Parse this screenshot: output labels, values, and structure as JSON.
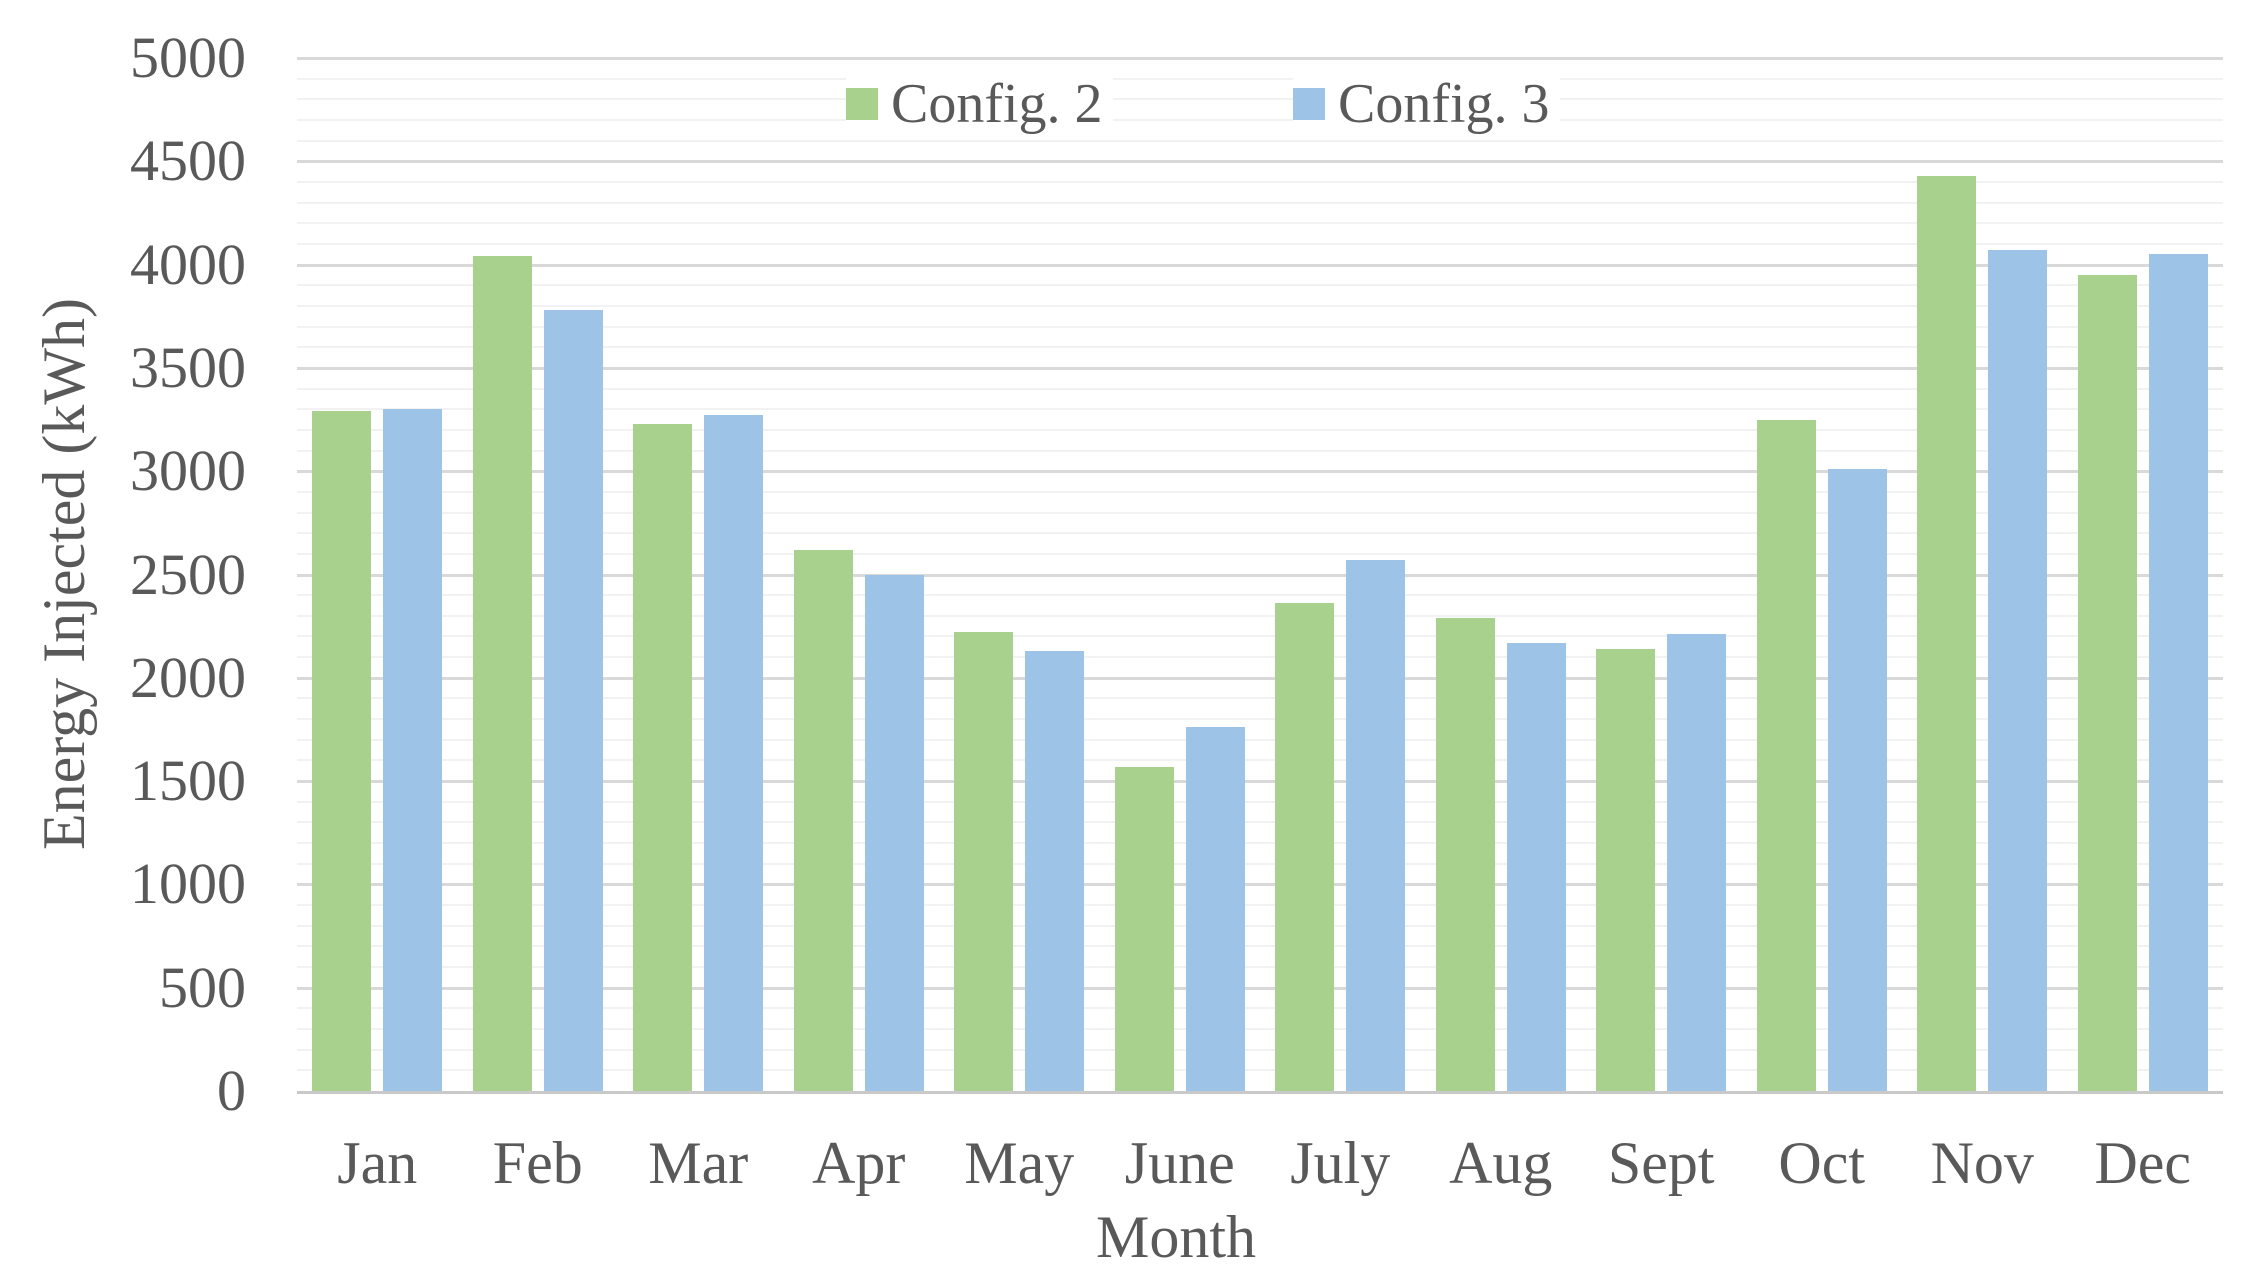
{
  "chart_data": {
    "type": "bar",
    "categories": [
      "Jan",
      "Feb",
      "Mar",
      "Apr",
      "May",
      "June",
      "July",
      "Aug",
      "Sept",
      "Oct",
      "Nov",
      "Dec"
    ],
    "series": [
      {
        "name": "Config. 2",
        "color": "#A9D18E",
        "values": [
          3290,
          4040,
          3230,
          2620,
          2220,
          1570,
          2360,
          2290,
          2140,
          3250,
          4430,
          3950
        ]
      },
      {
        "name": "Config. 3",
        "color": "#9DC3E6",
        "values": [
          3300,
          3780,
          3270,
          2500,
          2130,
          1760,
          2570,
          2170,
          2210,
          3010,
          4070,
          4050
        ]
      }
    ],
    "xlabel": "Month",
    "ylabel": "Energy Injected (kWh)",
    "ylim": [
      0,
      5000
    ],
    "major_step": 500,
    "minor_step": 100,
    "ytick_labels": [
      "0",
      "500",
      "1000",
      "1500",
      "2000",
      "2500",
      "3000",
      "3500",
      "4000",
      "4500",
      "5000"
    ],
    "grid": "horizontal, major + minor",
    "legend_position": "top-center-inside"
  },
  "colors": {
    "background": "#FFFFFF",
    "text": "#595959",
    "major_gridline": "#D9D9D9",
    "minor_gridline": "#F2F2F2",
    "axis_line": "#C9C9C9",
    "series_config2": "#A9D18E",
    "series_config3": "#9DC3E6"
  }
}
